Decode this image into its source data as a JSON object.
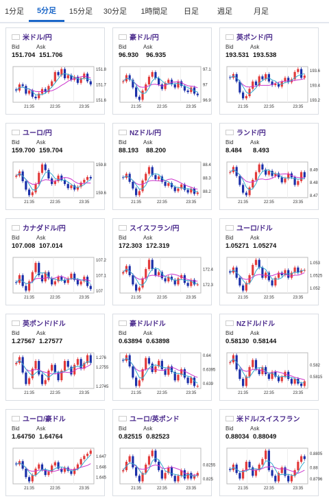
{
  "tabs": [
    {
      "label": "1分足",
      "active": false
    },
    {
      "label": "5分足",
      "active": true
    },
    {
      "label": "15分足",
      "active": false
    },
    {
      "label": "30分足",
      "active": false
    },
    {
      "label": "1時間足",
      "active": false
    },
    {
      "label": "日足",
      "active": false
    },
    {
      "label": "週足",
      "active": false
    },
    {
      "label": "月足",
      "active": false
    }
  ],
  "colors": {
    "up": "#e23a3a",
    "down": "#1b2fa8",
    "ma": "#cc33cc",
    "ma2": "#33aacc",
    "title": "#4a2a8c",
    "accent": "#1a66c8"
  },
  "labels": {
    "bid": "Bid",
    "ask": "Ask"
  },
  "pairs": [
    {
      "name": "米ドル/円",
      "flag": "us-jp-flag",
      "bid": "151.704",
      "ask": "151.706",
      "yticks": [
        "151.8",
        "151.7",
        "151.6"
      ],
      "xticks": [
        "21:35",
        "22:35",
        "23:35"
      ],
      "closes": [
        151.66,
        151.7,
        151.69,
        151.64,
        151.66,
        151.62,
        151.61,
        151.64,
        151.67,
        151.65,
        151.69,
        151.72,
        151.78,
        151.76,
        151.8,
        151.74,
        151.76,
        151.73,
        151.75,
        151.71,
        151.74,
        151.77,
        151.72,
        151.7
      ]
    },
    {
      "name": "豪ドル/円",
      "flag": "au-jp-flag",
      "bid": "96.930",
      "ask": "96.935",
      "yticks": [
        "97.1",
        "97",
        "96.9"
      ],
      "xticks": [
        "21:35",
        "22:35",
        "23:35"
      ],
      "closes": [
        97.02,
        97.06,
        97.03,
        96.98,
        96.92,
        96.9,
        96.96,
        97.0,
        97.05,
        97.08,
        97.04,
        97.0,
        96.97,
        97.01,
        97.03,
        97.0,
        96.98,
        97.02,
        96.99,
        96.96,
        96.95,
        96.98,
        96.94,
        96.93
      ]
    },
    {
      "name": "英ポンド/円",
      "flag": "gb-jp-flag",
      "bid": "193.531",
      "ask": "193.538",
      "yticks": [
        "193.6",
        "193.4",
        "193.2"
      ],
      "xticks": [
        "21:35",
        "22:35",
        "23:35"
      ],
      "closes": [
        193.5,
        193.55,
        193.45,
        193.3,
        193.22,
        193.25,
        193.35,
        193.45,
        193.4,
        193.52,
        193.48,
        193.55,
        193.45,
        193.4,
        193.42,
        193.38,
        193.45,
        193.5,
        193.44,
        193.48,
        193.58,
        193.62,
        193.5,
        193.53
      ]
    },
    {
      "name": "ユーロ/円",
      "flag": "eu-jp-flag",
      "bid": "159.700",
      "ask": "159.704",
      "yticks": [
        "159.8",
        "159.6"
      ],
      "xticks": [
        "21:35",
        "22:35",
        "23:35"
      ],
      "closes": [
        159.72,
        159.75,
        159.68,
        159.62,
        159.58,
        159.6,
        159.66,
        159.74,
        159.8,
        159.76,
        159.7,
        159.66,
        159.68,
        159.72,
        159.69,
        159.66,
        159.63,
        159.65,
        159.62,
        159.64,
        159.67,
        159.69,
        159.71,
        159.7
      ]
    },
    {
      "name": "NZドル/円",
      "flag": "nz-jp-flag",
      "bid": "88.193",
      "ask": "88.200",
      "yticks": [
        "88.4",
        "88.3",
        "88.2"
      ],
      "xticks": [
        "21:35",
        "22:35",
        "23:35"
      ],
      "closes": [
        88.3,
        88.33,
        88.27,
        88.22,
        88.17,
        88.2,
        88.28,
        88.33,
        88.38,
        88.32,
        88.29,
        88.31,
        88.27,
        88.24,
        88.26,
        88.23,
        88.2,
        88.22,
        88.25,
        88.21,
        88.19,
        88.22,
        88.18,
        88.19
      ]
    },
    {
      "name": "ランド/円",
      "flag": "za-jp-flag",
      "bid": "8.484",
      "ask": "8.493",
      "yticks": [
        "8.49",
        "8.48",
        "8.47"
      ],
      "xticks": [
        "21:35",
        "22:35",
        "23:35"
      ],
      "closes": [
        8.488,
        8.492,
        8.485,
        8.478,
        8.472,
        8.47,
        8.476,
        8.482,
        8.488,
        8.494,
        8.49,
        8.486,
        8.489,
        8.485,
        8.487,
        8.484,
        8.48,
        8.483,
        8.487,
        8.484,
        8.478,
        8.481,
        8.488,
        8.484
      ]
    },
    {
      "name": "カナダドル/円",
      "flag": "ca-jp-flag",
      "bid": "107.008",
      "ask": "107.014",
      "yticks": [
        "107.2",
        "107.1",
        "107"
      ],
      "xticks": [
        "21:35",
        "22:35",
        "23:35"
      ],
      "closes": [
        107.05,
        107.1,
        107.03,
        107.0,
        107.06,
        107.12,
        107.18,
        107.1,
        107.06,
        107.12,
        107.08,
        107.04,
        107.06,
        107.09,
        107.07,
        107.05,
        107.08,
        107.11,
        107.07,
        107.04,
        107.06,
        107.09,
        107.03,
        107.01
      ]
    },
    {
      "name": "スイスフラン/円",
      "flag": "ch-jp-flag",
      "bid": "172.303",
      "ask": "172.319",
      "yticks": [
        "172.4",
        "172.3"
      ],
      "xticks": [
        "21:35",
        "22:35",
        "23:35"
      ],
      "closes": [
        172.38,
        172.42,
        172.36,
        172.3,
        172.26,
        172.28,
        172.34,
        172.4,
        172.46,
        172.4,
        172.36,
        172.38,
        172.34,
        172.32,
        172.35,
        172.33,
        172.3,
        172.34,
        172.36,
        172.31,
        172.29,
        172.33,
        172.3,
        172.3
      ]
    },
    {
      "name": "ユーロ/ドル",
      "flag": "eu-us-flag",
      "bid": "1.05271",
      "ask": "1.05274",
      "yticks": [
        "1.053",
        "1.0525",
        "1.052"
      ],
      "xticks": [
        "21:35",
        "22:35",
        "23:35"
      ],
      "closes": [
        1.0526,
        1.0528,
        1.0524,
        1.0521,
        1.0519,
        1.0522,
        1.0525,
        1.0529,
        1.0531,
        1.0528,
        1.0524,
        1.0526,
        1.0523,
        1.0521,
        1.0524,
        1.0526,
        1.0525,
        1.0527,
        1.0524,
        1.0526,
        1.0528,
        1.0526,
        1.0527,
        1.0527
      ]
    },
    {
      "name": "英ポンド/ドル",
      "flag": "gb-us-flag",
      "bid": "1.27567",
      "ask": "1.27577",
      "yticks": [
        "1.276",
        "1.2755",
        "1.2745"
      ],
      "xticks": [
        "21:35",
        "22:35",
        "23:35"
      ],
      "closes": [
        1.2757,
        1.276,
        1.2752,
        1.2746,
        1.2749,
        1.2754,
        1.2758,
        1.2751,
        1.2746,
        1.2748,
        1.2753,
        1.2756,
        1.2752,
        1.2748,
        1.2753,
        1.2758,
        1.2755,
        1.2751,
        1.2756,
        1.2759,
        1.2754,
        1.2757,
        1.2761,
        1.2757
      ]
    },
    {
      "name": "豪ドル/ドル",
      "flag": "au-us-flag",
      "bid": "0.63894",
      "ask": "0.63898",
      "yticks": [
        "0.64",
        "0.6395",
        "0.639"
      ],
      "xticks": [
        "21:35",
        "22:35",
        "23:35"
      ],
      "closes": [
        0.6398,
        0.64,
        0.6396,
        0.6392,
        0.6389,
        0.6391,
        0.6395,
        0.6399,
        0.6397,
        0.6394,
        0.6396,
        0.6398,
        0.6395,
        0.6393,
        0.6396,
        0.6394,
        0.6391,
        0.6393,
        0.6395,
        0.6392,
        0.639,
        0.6392,
        0.6389,
        0.6389
      ]
    },
    {
      "name": "NZドル/ドル",
      "flag": "nz-us-flag",
      "bid": "0.58130",
      "ask": "0.58144",
      "yticks": [
        "0.582",
        "0.5815"
      ],
      "xticks": [
        "21:35",
        "22:35",
        "23:35"
      ],
      "closes": [
        0.5821,
        0.5824,
        0.5818,
        0.5814,
        0.5811,
        0.5815,
        0.5819,
        0.5822,
        0.5818,
        0.5816,
        0.5819,
        0.5816,
        0.5814,
        0.5817,
        0.5815,
        0.5813,
        0.5815,
        0.5817,
        0.5814,
        0.5812,
        0.5814,
        0.5812,
        0.5811,
        0.5813
      ]
    },
    {
      "name": "ユーロ/豪ドル",
      "flag": "eu-au-flag",
      "bid": "1.64750",
      "ask": "1.64764",
      "yticks": [
        "1.647",
        "1.646",
        "1.645"
      ],
      "xticks": [
        "21:35",
        "22:35",
        "23:35"
      ],
      "closes": [
        1.6462,
        1.6465,
        1.6458,
        1.645,
        1.6446,
        1.6452,
        1.6458,
        1.6462,
        1.6457,
        1.6452,
        1.6455,
        1.6461,
        1.6464,
        1.6458,
        1.6455,
        1.6459,
        1.6456,
        1.6453,
        1.6458,
        1.6462,
        1.6467,
        1.647,
        1.6472,
        1.6475
      ]
    },
    {
      "name": "ユーロ/英ポンド",
      "flag": "eu-gb-flag",
      "bid": "0.82515",
      "ask": "0.82523",
      "yticks": [
        "0.8255",
        "0.825"
      ],
      "xticks": [
        "21:35",
        "22:35",
        "23:35"
      ],
      "closes": [
        0.8253,
        0.8256,
        0.8258,
        0.8254,
        0.8251,
        0.8249,
        0.8252,
        0.8255,
        0.8258,
        0.826,
        0.8256,
        0.8253,
        0.825,
        0.8252,
        0.8254,
        0.8251,
        0.8249,
        0.8251,
        0.8253,
        0.825,
        0.8252,
        0.825,
        0.8251,
        0.8252
      ]
    },
    {
      "name": "米ドル/スイスフラン",
      "flag": "us-ch-flag",
      "bid": "0.88034",
      "ask": "0.88049",
      "yticks": [
        "0.8805",
        "0.88",
        "0.8796"
      ],
      "xticks": [
        "21:35",
        "22:35",
        "23:35"
      ],
      "closes": [
        0.8799,
        0.8801,
        0.8798,
        0.8796,
        0.8799,
        0.8802,
        0.88,
        0.8797,
        0.8799,
        0.8801,
        0.8803,
        0.8806,
        0.8799,
        0.8797,
        0.8795,
        0.8798,
        0.88,
        0.8797,
        0.8795,
        0.8797,
        0.8799,
        0.8802,
        0.8804,
        0.8803
      ]
    }
  ]
}
